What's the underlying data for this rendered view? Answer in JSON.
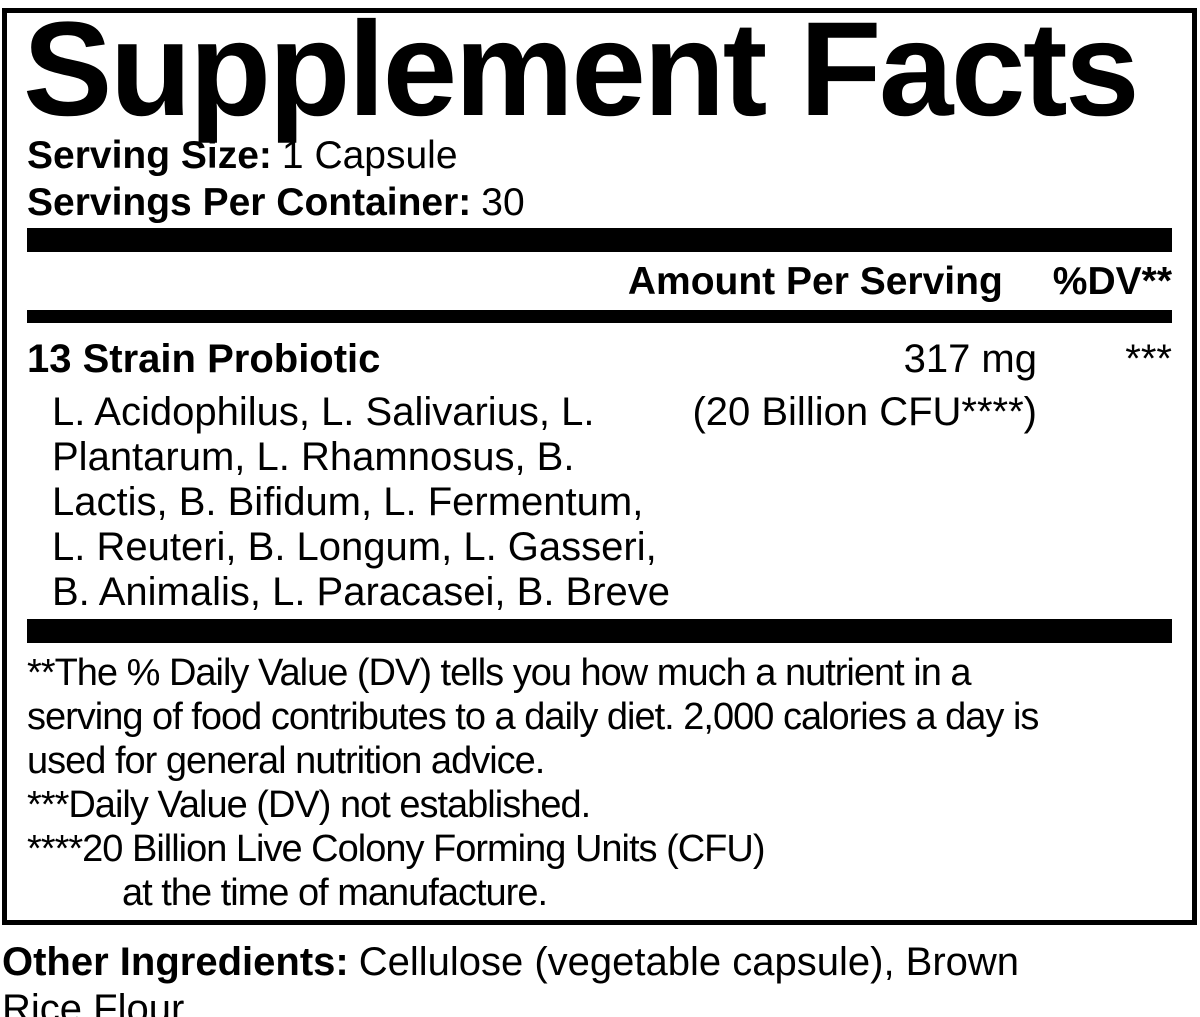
{
  "label": {
    "title": "Supplement Facts",
    "serving_size_label": "Serving Size:",
    "serving_size_value": "1 Capsule",
    "servings_per_container_label": "Servings Per Container:",
    "servings_per_container_value": "30",
    "header": {
      "amount_label": "Amount Per Serving",
      "dv_label": "%DV**"
    },
    "nutrient": {
      "name": "13 Strain Probiotic",
      "amount": "317 mg",
      "amount_detail": "(20 Billion CFU****)",
      "dv_symbol": "***",
      "strains_lines": [
        "L. Acidophilus, L. Salivarius, L.",
        "Plantarum, L. Rhamnosus, B.",
        "Lactis, B. Bifidum, L. Fermentum,",
        "L. Reuteri, B. Longum, L. Gasseri,",
        "B. Animalis, L. Paracasei, B. Breve"
      ]
    },
    "footnotes": [
      "**The % Daily Value (DV) tells you how much a nutrient in a",
      "serving of food contributes to a daily diet. 2,000 calories a day is",
      "used for general nutrition advice.",
      "***Daily Value (DV) not established.",
      "****20 Billion Live Colony Forming Units (CFU)",
      "at the time of manufacture."
    ],
    "other_ingredients_label": "Other Ingredients:",
    "other_ingredients_value": "Cellulose (vegetable capsule), Brown Rice Flour.",
    "colors": {
      "text": "#000000",
      "background": "#ffffff"
    }
  }
}
